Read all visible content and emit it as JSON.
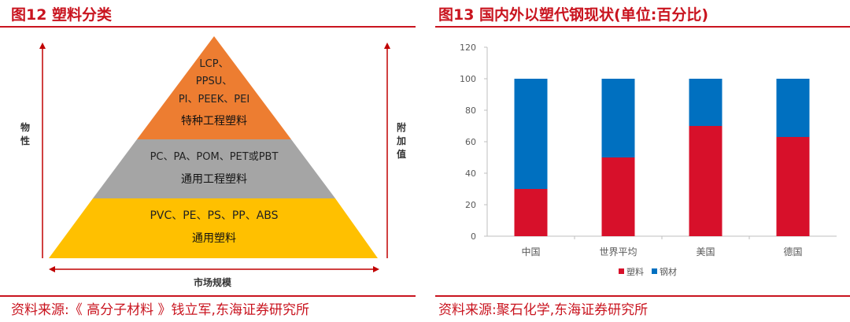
{
  "left_panel": {
    "title": "图12  塑料分类",
    "source": "资料来源:《 高分子材料 》钱立军,东海证券研究所",
    "y_axis_label": "物\n性",
    "right_axis_label": "附\n加\n值",
    "x_axis_label": "市场规模",
    "tiers": [
      {
        "lines": [
          "LCP、",
          "PPSU、",
          "PI、PEEK、PEI"
        ],
        "name": "特种工程塑料",
        "color": "#ed7d31"
      },
      {
        "lines": [
          "PC、PA、POM、PET或PBT"
        ],
        "name": "通用工程塑料",
        "color": "#a5a5a5"
      },
      {
        "lines": [
          "PVC、PE、PS、PP、ABS"
        ],
        "name": "通用塑料",
        "color": "#ffc000"
      }
    ],
    "arrow_color": "#c00000"
  },
  "right_panel": {
    "title": "图13  国内外以塑代钢现状(单位:百分比)",
    "source": "资料来源:聚石化学,东海证券研究所"
  },
  "chart_data": {
    "type": "bar",
    "stacked": true,
    "categories": [
      "中国",
      "世界平均",
      "美国",
      "德国"
    ],
    "series": [
      {
        "name": "塑料",
        "values": [
          30,
          50,
          70,
          63
        ],
        "color": "#d7102a"
      },
      {
        "name": "钢材",
        "values": [
          70,
          50,
          30,
          37
        ],
        "color": "#0070c0"
      }
    ],
    "yticks": [
      "0",
      "20",
      "40",
      "60",
      "80",
      "100",
      "120"
    ],
    "ylim": [
      0,
      120
    ],
    "legend": "bottom",
    "grid": false
  },
  "colors": {
    "accent": "#c9141f"
  }
}
